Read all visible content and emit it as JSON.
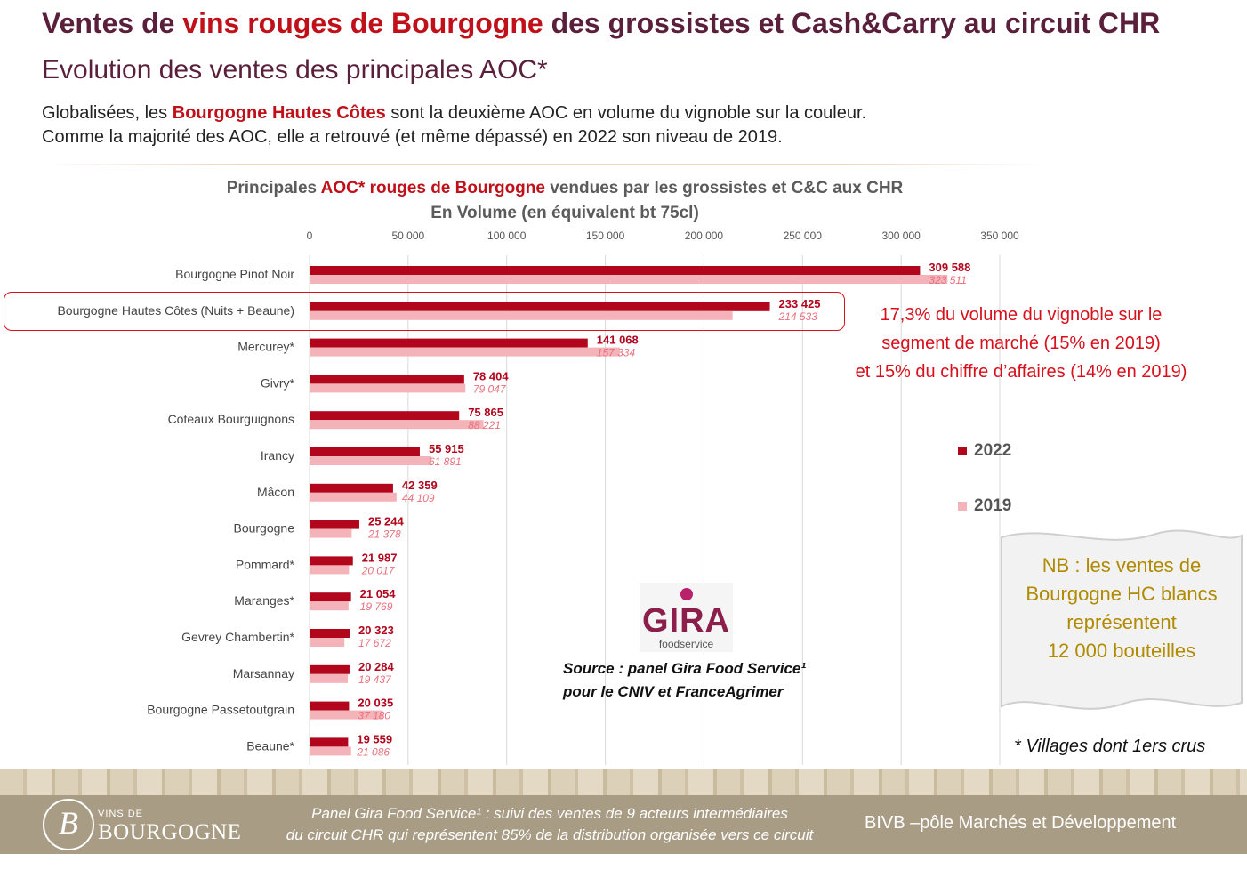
{
  "header": {
    "title_before": "Ventes de ",
    "title_highlight": "vins rouges de Bourgogne",
    "title_after": " des grossistes et Cash&Carry au circuit CHR",
    "subtitle": "Evolution des ventes des principales AOC*",
    "intro_line1_before": "Globalisées, les ",
    "intro_line1_highlight": "Bourgogne Hautes Côtes",
    "intro_line1_after": " sont la deuxième AOC en volume du vignoble sur la couleur.",
    "intro_line2": "Comme la majorité des AOC, elle a retrouvé (et même dépassé) en 2022 son niveau de 2019."
  },
  "chart_data": {
    "type": "bar",
    "orientation": "horizontal",
    "title_before": "Principales ",
    "title_highlight": "AOC* rouges de Bourgogne",
    "title_after": " vendues par les grossistes et C&C aux CHR",
    "subtitle": "En Volume (en équivalent bt 75cl)",
    "xlim": [
      0,
      350000
    ],
    "xticks": [
      0,
      50000,
      100000,
      150000,
      200000,
      250000,
      300000,
      350000
    ],
    "xtick_labels": [
      "0",
      "50 000",
      "100 000",
      "150 000",
      "200 000",
      "250 000",
      "300 000",
      "350 000"
    ],
    "grid": true,
    "categories": [
      "Bourgogne Pinot Noir",
      "Bourgogne Hautes Côtes (Nuits + Beaune)",
      "Mercurey*",
      "Givry*",
      "Coteaux Bourguignons",
      "Irancy",
      "Mâcon",
      "Bourgogne",
      "Pommard*",
      "Maranges*",
      "Gevrey Chambertin*",
      "Marsannay",
      "Bourgogne Passetoutgrain",
      "Beaune*"
    ],
    "series": [
      {
        "name": "2022",
        "color": "#b2061d",
        "values": [
          309588,
          233425,
          141068,
          78404,
          75865,
          55915,
          42359,
          25244,
          21987,
          21054,
          20323,
          20284,
          20035,
          19559
        ],
        "labels": [
          "309 588",
          "233 425",
          "141 068",
          "78 404",
          "75 865",
          "55 915",
          "42 359",
          "25 244",
          "21 987",
          "21 054",
          "20 323",
          "20 284",
          "20 035",
          "19 559"
        ]
      },
      {
        "name": "2019",
        "color": "#f4b3b9",
        "values": [
          323511,
          214533,
          157334,
          79047,
          88221,
          61891,
          44109,
          21378,
          20017,
          19769,
          17672,
          19437,
          37180,
          21086
        ],
        "labels": [
          "323 511",
          "214 533",
          "157 334",
          "79 047",
          "88 221",
          "61 891",
          "44 109",
          "21 378",
          "20 017",
          "19 769",
          "17 672",
          "19 437",
          "37 180",
          "21 086"
        ]
      }
    ],
    "legend_position": "right"
  },
  "annotation": {
    "line1": "17,3% du volume du vignoble sur le",
    "line2": "segment de marché (15% en 2019)",
    "line3": "et 15% du chiffre d’affaires (14% en 2019)"
  },
  "nb": {
    "line1": "NB : les ventes de",
    "line2": "Bourgogne HC blancs",
    "line3": "représentent",
    "line4": "12 000 bouteilles"
  },
  "gira_logo": {
    "word": "GIRA",
    "sub": "foodservice"
  },
  "source": {
    "line1": "Source : panel Gira Food Service¹",
    "line2": "pour le CNIV et FranceAgrimer"
  },
  "villages_note": "* Villages dont 1ers crus",
  "footer": {
    "logo_letter": "B",
    "logo_small": "VINS DE",
    "logo_big": "BOURGOGNE",
    "note_line1": "Panel Gira Food Service¹ : suivi des ventes de 9 acteurs intermédiaires",
    "note_line2": "du circuit CHR qui représentent 85% de la distribution organisée vers ce circuit",
    "right": "BIVB –pôle Marchés et Développement"
  }
}
